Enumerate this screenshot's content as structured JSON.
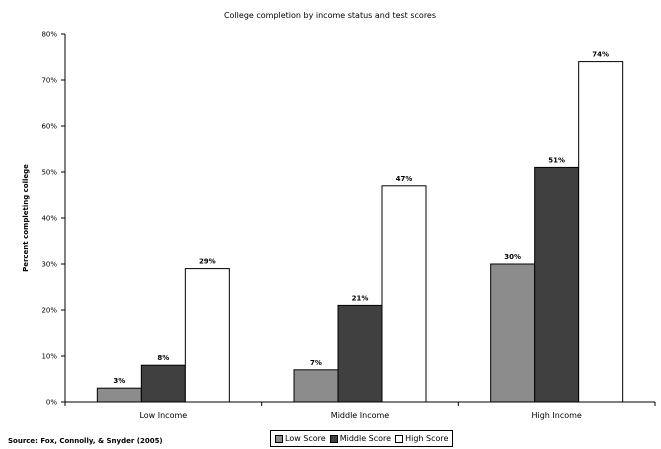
{
  "chart_data": {
    "type": "bar",
    "title": "College completion by income status and test scores",
    "ylabel": "Percent completing college",
    "xlabel": "",
    "categories": [
      "Low Income",
      "Middle Income",
      "High Income"
    ],
    "series": [
      {
        "name": "Low Score",
        "color": "#8c8c8c",
        "values": [
          3,
          7,
          30
        ],
        "labels": [
          "3%",
          "7%",
          "30%"
        ]
      },
      {
        "name": "Middle Score",
        "color": "#404040",
        "values": [
          8,
          21,
          51
        ],
        "labels": [
          "8%",
          "21%",
          "51%"
        ]
      },
      {
        "name": "High Score",
        "color": "#ffffff",
        "values": [
          29,
          47,
          74
        ],
        "labels": [
          "29%",
          "47%",
          "74%"
        ]
      }
    ],
    "ylim": [
      0,
      80
    ],
    "yticks": [
      0,
      10,
      20,
      30,
      40,
      50,
      60,
      70,
      80
    ],
    "ytick_labels": [
      "0%",
      "10%",
      "20%",
      "30%",
      "40%",
      "50%",
      "60%",
      "70%",
      "80%"
    ],
    "grid": false,
    "legend_position": "bottom"
  },
  "source_text": "Source: Fox, Connolly, & Snyder (2005)"
}
